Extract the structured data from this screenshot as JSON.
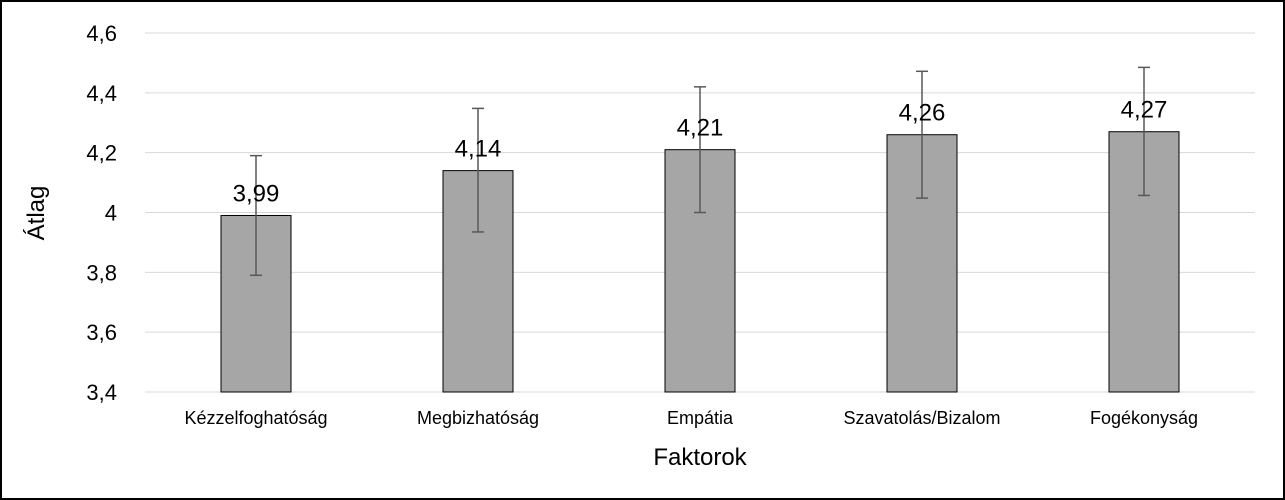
{
  "chart_data": {
    "type": "bar",
    "categories": [
      "Kézzelfoghatóság",
      "Megbizhatóság",
      "Empátia",
      "Szavatolás/Bizalom",
      "Fogékonyság"
    ],
    "values": [
      3.99,
      4.14,
      4.21,
      4.26,
      4.27
    ],
    "data_labels": [
      "3,99",
      "4,14",
      "4,21",
      "4,26",
      "4,27"
    ],
    "error_low": [
      3.79,
      3.935,
      4.0,
      4.048,
      4.057
    ],
    "error_high": [
      4.19,
      4.348,
      4.42,
      4.472,
      4.485
    ],
    "xlabel": "Faktorok",
    "ylabel": "Átlag",
    "ylim": [
      3.4,
      4.6
    ],
    "yticks": [
      3.4,
      3.6,
      3.8,
      4.0,
      4.2,
      4.4,
      4.6
    ],
    "ytick_labels": [
      "3,4",
      "3,6",
      "3,8",
      "4",
      "4,2",
      "4,4",
      "4,6"
    ],
    "grid": true,
    "legend": "none",
    "colors": {
      "bar": "#a6a6a6",
      "grid": "#d9d9d9",
      "error_bar": "#595959"
    }
  }
}
